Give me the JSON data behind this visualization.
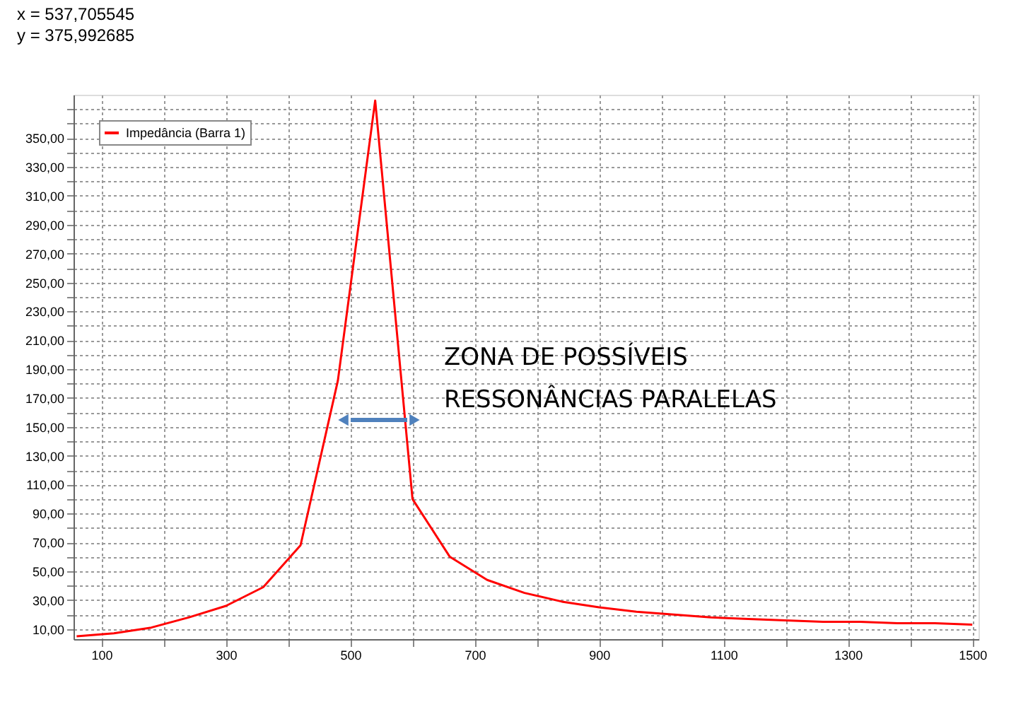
{
  "chart_data": {
    "type": "line",
    "x": [
      60,
      120,
      180,
      240,
      300,
      360,
      420,
      480,
      540,
      600,
      660,
      720,
      780,
      840,
      900,
      960,
      1020,
      1080,
      1140,
      1200,
      1260,
      1320,
      1380,
      1440,
      1500
    ],
    "series": [
      {
        "name": "Impedância (Barra 1)",
        "color": "#ff0000",
        "values": [
          5,
          7,
          11,
          18,
          26,
          39,
          68,
          182,
          376,
          100,
          60,
          44,
          35,
          29,
          25,
          22,
          20,
          18,
          17,
          16,
          15,
          15,
          14,
          14,
          13
        ]
      }
    ],
    "xlim": [
      55,
      1510
    ],
    "xticks": [
      100,
      {
        "value": 200,
        "label": null
      },
      300,
      {
        "value": 400,
        "label": null
      },
      500,
      {
        "value": 600,
        "label": null
      },
      700,
      {
        "value": 800,
        "label": null
      },
      900,
      {
        "value": 1000,
        "label": null
      },
      1100,
      {
        "value": 1200,
        "label": null
      },
      1300,
      {
        "value": 1400,
        "label": null
      },
      1500
    ],
    "ylim": [
      3,
      380
    ],
    "yticks": [
      {
        "value": 10,
        "label": "10,00"
      },
      {
        "value": 20,
        "label": null
      },
      {
        "value": 30,
        "label": "30,00"
      },
      {
        "value": 40,
        "label": null
      },
      {
        "value": 50,
        "label": "50,00"
      },
      {
        "value": 60,
        "label": null
      },
      {
        "value": 70,
        "label": "70,00"
      },
      {
        "value": 80,
        "label": null
      },
      {
        "value": 90,
        "label": "90,00"
      },
      {
        "value": 100,
        "label": null
      },
      {
        "value": 110,
        "label": "110,00"
      },
      {
        "value": 120,
        "label": null
      },
      {
        "value": 130,
        "label": "130,00"
      },
      {
        "value": 140,
        "label": null
      },
      {
        "value": 150,
        "label": "150,00"
      },
      {
        "value": 160,
        "label": null
      },
      {
        "value": 170,
        "label": "170,00"
      },
      {
        "value": 180,
        "label": null
      },
      {
        "value": 190,
        "label": "190,00"
      },
      {
        "value": 200,
        "label": null
      },
      {
        "value": 210,
        "label": "210,00"
      },
      {
        "value": 220,
        "label": null
      },
      {
        "value": 230,
        "label": "230,00"
      },
      {
        "value": 240,
        "label": null
      },
      {
        "value": 250,
        "label": "250,00"
      },
      {
        "value": 260,
        "label": null
      },
      {
        "value": 270,
        "label": "270,00"
      },
      {
        "value": 280,
        "label": null
      },
      {
        "value": 290,
        "label": "290,00"
      },
      {
        "value": 300,
        "label": null
      },
      {
        "value": 310,
        "label": "310,00"
      },
      {
        "value": 320,
        "label": null
      },
      {
        "value": 330,
        "label": "330,00"
      },
      {
        "value": 340,
        "label": null
      },
      {
        "value": 350,
        "label": "350,00"
      },
      {
        "value": 360,
        "label": null
      },
      {
        "value": 370,
        "label": null
      }
    ],
    "grid": true,
    "legend": "top left",
    "line_style": "solid",
    "marker": "none",
    "annotations": [
      "x = 537,705545\ny = 375,992685",
      "ZONA DE POSSÍVEIS\nRESSONÂNCIAS PARALELAS"
    ]
  }
}
